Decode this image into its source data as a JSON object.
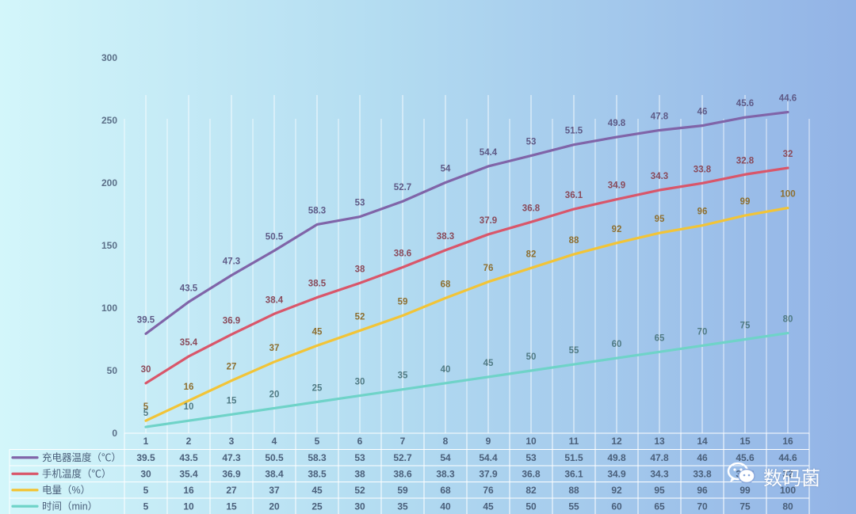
{
  "chart_data": {
    "type": "line",
    "stacked": true,
    "categories": [
      "1",
      "2",
      "3",
      "4",
      "5",
      "6",
      "7",
      "8",
      "9",
      "10",
      "11",
      "12",
      "13",
      "14",
      "15",
      "16"
    ],
    "y_axis": {
      "min": 0,
      "max": 300,
      "step": 50,
      "ticks": [
        "0",
        "50",
        "100",
        "150",
        "200",
        "250",
        "300"
      ]
    },
    "grid": "vertical lines at each category",
    "data_table": true,
    "series": [
      {
        "name": "充电器温度（℃）",
        "color": "#8064a8",
        "values": [
          39.5,
          43.5,
          47.3,
          50.5,
          58.3,
          53,
          52.7,
          54,
          54.4,
          53,
          51.5,
          49.8,
          47.8,
          46,
          45.6,
          44.6
        ]
      },
      {
        "name": "手机温度（℃）",
        "color": "#d9566a",
        "values": [
          30,
          35.4,
          36.9,
          38.4,
          38.5,
          38,
          38.6,
          38.3,
          37.9,
          36.8,
          36.1,
          34.9,
          34.3,
          33.8,
          32.8,
          32
        ]
      },
      {
        "name": "电量（%）",
        "color": "#f2c437",
        "values": [
          5,
          16,
          27,
          37,
          45,
          52,
          59,
          68,
          76,
          82,
          88,
          92,
          95,
          96,
          99,
          100
        ]
      },
      {
        "name": "时间（min）",
        "color": "#6fd3c8",
        "values": [
          5,
          10,
          15,
          20,
          25,
          30,
          35,
          40,
          45,
          50,
          55,
          60,
          65,
          70,
          75,
          80
        ]
      }
    ]
  },
  "watermark": {
    "icon": "wechat-icon",
    "text": "数码菌"
  }
}
